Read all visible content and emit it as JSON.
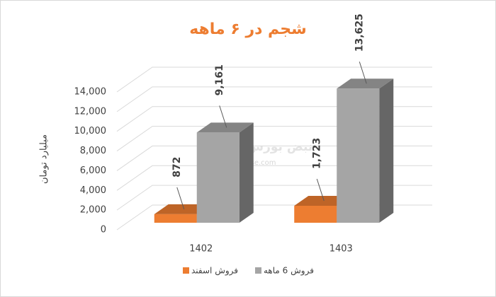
{
  "chart_data": {
    "type": "bar3d",
    "title": "شجم در ۶ ماهه",
    "y_label": "میلیارد تومان",
    "categories": [
      "1402",
      "1403"
    ],
    "series": [
      {
        "name": "فروش اسفند",
        "color": "#ED7D31",
        "values": [
          872,
          1723
        ],
        "value_labels": [
          "872",
          "1,723"
        ]
      },
      {
        "name": "فروش 6 ماهه",
        "color": "#A5A5A5",
        "values": [
          9161,
          13625
        ],
        "value_labels": [
          "9,161",
          "13,625"
        ]
      }
    ],
    "ylim": [
      0,
      14000
    ],
    "yticks": [
      0,
      {
        "value": 2000,
        "label": "2,000"
      },
      {
        "value": 4000,
        "label": "4,000"
      },
      {
        "value": 6000,
        "label": "6,000"
      },
      {
        "value": 8000,
        "label": "8,000"
      },
      {
        "value": 10000,
        "label": "10,000"
      },
      {
        "value": 12000,
        "label": "12,000"
      },
      {
        "value": 14000,
        "label": "14,000"
      }
    ],
    "grid": true,
    "legend": "bottom",
    "watermark": {
      "logo": "نبض بورس",
      "site": "nabzebourse.com"
    }
  }
}
